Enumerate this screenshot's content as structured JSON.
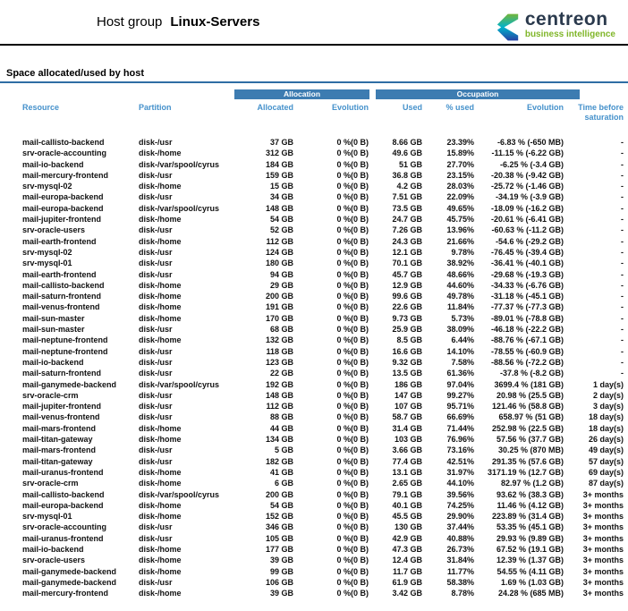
{
  "page": {
    "title_prefix": "Host group",
    "title_name": "Linux-Servers"
  },
  "logo": {
    "brand": "centreon",
    "tagline": "business intelligence"
  },
  "section": {
    "title": "Space allocated/used by host"
  },
  "table": {
    "group_headers": {
      "allocation": "Allocation",
      "occupation": "Occupation"
    },
    "columns": {
      "resource": "Resource",
      "partition": "Partition",
      "allocated": "Allocated",
      "allocation_evolution": "Evolution",
      "used": "Used",
      "percent_used": "% used",
      "occupation_evolution": "Evolution",
      "time_before_saturation": "Time before saturation"
    },
    "rows": [
      [
        "mail-callisto-backend",
        "disk-/usr",
        "37 GB",
        "0 %(0 B)",
        "8.66 GB",
        "23.39%",
        "-6.83 % (-650 MB)",
        "-"
      ],
      [
        "srv-oracle-accounting",
        "disk-/home",
        "312 GB",
        "0 %(0 B)",
        "49.6 GB",
        "15.89%",
        "-11.15 % (-6.22 GB)",
        "-"
      ],
      [
        "mail-io-backend",
        "disk-/var/spool/cyrus",
        "184 GB",
        "0 %(0 B)",
        "51 GB",
        "27.70%",
        "-6.25 % (-3.4 GB)",
        "-"
      ],
      [
        "mail-mercury-frontend",
        "disk-/usr",
        "159 GB",
        "0 %(0 B)",
        "36.8 GB",
        "23.15%",
        "-20.38 % (-9.42 GB)",
        "-"
      ],
      [
        "srv-mysql-02",
        "disk-/home",
        "15 GB",
        "0 %(0 B)",
        "4.2 GB",
        "28.03%",
        "-25.72 % (-1.46 GB)",
        "-"
      ],
      [
        "mail-europa-backend",
        "disk-/usr",
        "34 GB",
        "0 %(0 B)",
        "7.51 GB",
        "22.09%",
        "-34.19 % (-3.9 GB)",
        "-"
      ],
      [
        "mail-europa-backend",
        "disk-/var/spool/cyrus",
        "148 GB",
        "0 %(0 B)",
        "73.5 GB",
        "49.65%",
        "-18.09 % (-16.2 GB)",
        "-"
      ],
      [
        "mail-jupiter-frontend",
        "disk-/home",
        "54 GB",
        "0 %(0 B)",
        "24.7 GB",
        "45.75%",
        "-20.61 % (-6.41 GB)",
        "-"
      ],
      [
        "srv-oracle-users",
        "disk-/usr",
        "52 GB",
        "0 %(0 B)",
        "7.26 GB",
        "13.96%",
        "-60.63 % (-11.2 GB)",
        "-"
      ],
      [
        "mail-earth-frontend",
        "disk-/home",
        "112 GB",
        "0 %(0 B)",
        "24.3 GB",
        "21.66%",
        "-54.6 % (-29.2 GB)",
        "-"
      ],
      [
        "srv-mysql-02",
        "disk-/usr",
        "124 GB",
        "0 %(0 B)",
        "12.1 GB",
        "9.78%",
        "-76.45 % (-39.4 GB)",
        "-"
      ],
      [
        "srv-mysql-01",
        "disk-/usr",
        "180 GB",
        "0 %(0 B)",
        "70.1 GB",
        "38.92%",
        "-36.41 % (-40.1 GB)",
        "-"
      ],
      [
        "mail-earth-frontend",
        "disk-/usr",
        "94 GB",
        "0 %(0 B)",
        "45.7 GB",
        "48.66%",
        "-29.68 % (-19.3 GB)",
        "-"
      ],
      [
        "mail-callisto-backend",
        "disk-/home",
        "29 GB",
        "0 %(0 B)",
        "12.9 GB",
        "44.60%",
        "-34.33 % (-6.76 GB)",
        "-"
      ],
      [
        "mail-saturn-frontend",
        "disk-/home",
        "200 GB",
        "0 %(0 B)",
        "99.6 GB",
        "49.78%",
        "-31.18 % (-45.1 GB)",
        "-"
      ],
      [
        "mail-venus-frontend",
        "disk-/home",
        "191 GB",
        "0 %(0 B)",
        "22.6 GB",
        "11.84%",
        "-77.37 % (-77.3 GB)",
        "-"
      ],
      [
        "mail-sun-master",
        "disk-/home",
        "170 GB",
        "0 %(0 B)",
        "9.73 GB",
        "5.73%",
        "-89.01 % (-78.8 GB)",
        "-"
      ],
      [
        "mail-sun-master",
        "disk-/usr",
        "68 GB",
        "0 %(0 B)",
        "25.9 GB",
        "38.09%",
        "-46.18 % (-22.2 GB)",
        "-"
      ],
      [
        "mail-neptune-frontend",
        "disk-/home",
        "132 GB",
        "0 %(0 B)",
        "8.5 GB",
        "6.44%",
        "-88.76 % (-67.1 GB)",
        "-"
      ],
      [
        "mail-neptune-frontend",
        "disk-/usr",
        "118 GB",
        "0 %(0 B)",
        "16.6 GB",
        "14.10%",
        "-78.55 % (-60.9 GB)",
        "-"
      ],
      [
        "mail-io-backend",
        "disk-/usr",
        "123 GB",
        "0 %(0 B)",
        "9.32 GB",
        "7.58%",
        "-88.56 % (-72.2 GB)",
        "-"
      ],
      [
        "mail-saturn-frontend",
        "disk-/usr",
        "22 GB",
        "0 %(0 B)",
        "13.5 GB",
        "61.36%",
        "-37.8 % (-8.2 GB)",
        "-"
      ],
      [
        "mail-ganymede-backend",
        "disk-/var/spool/cyrus",
        "192 GB",
        "0 %(0 B)",
        "186 GB",
        "97.04%",
        "3699.4 % (181 GB)",
        "1 day(s)"
      ],
      [
        "srv-oracle-crm",
        "disk-/usr",
        "148 GB",
        "0 %(0 B)",
        "147 GB",
        "99.27%",
        "20.98 % (25.5 GB)",
        "2 day(s)"
      ],
      [
        "mail-jupiter-frontend",
        "disk-/usr",
        "112 GB",
        "0 %(0 B)",
        "107 GB",
        "95.71%",
        "121.46 % (58.8 GB)",
        "3 day(s)"
      ],
      [
        "mail-venus-frontend",
        "disk-/usr",
        "88 GB",
        "0 %(0 B)",
        "58.7 GB",
        "66.69%",
        "658.97 % (51 GB)",
        "18 day(s)"
      ],
      [
        "mail-mars-frontend",
        "disk-/home",
        "44 GB",
        "0 %(0 B)",
        "31.4 GB",
        "71.44%",
        "252.98 % (22.5 GB)",
        "18 day(s)"
      ],
      [
        "mail-titan-gateway",
        "disk-/home",
        "134 GB",
        "0 %(0 B)",
        "103 GB",
        "76.96%",
        "57.56 % (37.7 GB)",
        "26 day(s)"
      ],
      [
        "mail-mars-frontend",
        "disk-/usr",
        "5 GB",
        "0 %(0 B)",
        "3.66 GB",
        "73.16%",
        "30.25 % (870 MB)",
        "49 day(s)"
      ],
      [
        "mail-titan-gateway",
        "disk-/usr",
        "182 GB",
        "0 %(0 B)",
        "77.4 GB",
        "42.51%",
        "291.35 % (57.6 GB)",
        "57 day(s)"
      ],
      [
        "mail-uranus-frontend",
        "disk-/home",
        "41 GB",
        "0 %(0 B)",
        "13.1 GB",
        "31.97%",
        "3171.19 % (12.7 GB)",
        "69 day(s)"
      ],
      [
        "srv-oracle-crm",
        "disk-/home",
        "6 GB",
        "0 %(0 B)",
        "2.65 GB",
        "44.10%",
        "82.97 % (1.2 GB)",
        "87 day(s)"
      ],
      [
        "mail-callisto-backend",
        "disk-/var/spool/cyrus",
        "200 GB",
        "0 %(0 B)",
        "79.1 GB",
        "39.56%",
        "93.62 % (38.3 GB)",
        "3+ months"
      ],
      [
        "mail-europa-backend",
        "disk-/home",
        "54 GB",
        "0 %(0 B)",
        "40.1 GB",
        "74.25%",
        "11.46 % (4.12 GB)",
        "3+ months"
      ],
      [
        "srv-mysql-01",
        "disk-/home",
        "152 GB",
        "0 %(0 B)",
        "45.5 GB",
        "29.90%",
        "223.89 % (31.4 GB)",
        "3+ months"
      ],
      [
        "srv-oracle-accounting",
        "disk-/usr",
        "346 GB",
        "0 %(0 B)",
        "130 GB",
        "37.44%",
        "53.35 % (45.1 GB)",
        "3+ months"
      ],
      [
        "mail-uranus-frontend",
        "disk-/usr",
        "105 GB",
        "0 %(0 B)",
        "42.9 GB",
        "40.88%",
        "29.93 % (9.89 GB)",
        "3+ months"
      ],
      [
        "mail-io-backend",
        "disk-/home",
        "177 GB",
        "0 %(0 B)",
        "47.3 GB",
        "26.73%",
        "67.52 % (19.1 GB)",
        "3+ months"
      ],
      [
        "srv-oracle-users",
        "disk-/home",
        "39 GB",
        "0 %(0 B)",
        "12.4 GB",
        "31.84%",
        "12.39 % (1.37 GB)",
        "3+ months"
      ],
      [
        "mail-ganymede-backend",
        "disk-/home",
        "99 GB",
        "0 %(0 B)",
        "11.7 GB",
        "11.77%",
        "54.55 % (4.11 GB)",
        "3+ months"
      ],
      [
        "mail-ganymede-backend",
        "disk-/usr",
        "106 GB",
        "0 %(0 B)",
        "61.9 GB",
        "58.38%",
        "1.69 % (1.03 GB)",
        "3+ months"
      ],
      [
        "mail-mercury-frontend",
        "disk-/home",
        "39 GB",
        "0 %(0 B)",
        "3.42 GB",
        "8.78%",
        "24.28 % (685 MB)",
        "3+ months"
      ]
    ]
  },
  "colors": {
    "band_blue": "#3d7cb1",
    "header_text_blue": "#4591cb",
    "section_rule_blue": "#2e6da4",
    "logo_green": "#80b629",
    "logo_cyan": "#00b2cb",
    "logo_navy": "#2b35a0",
    "wordmark": "#2b3a4d"
  }
}
